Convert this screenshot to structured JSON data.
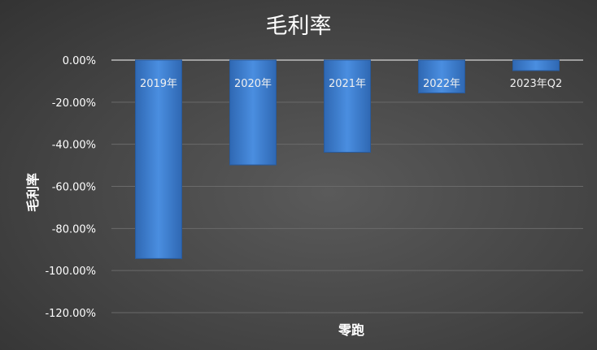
{
  "chart_data": {
    "type": "bar",
    "title": "毛利率",
    "xlabel": "零跑",
    "ylabel": "毛利率",
    "categories": [
      "2019年",
      "2020年",
      "2021年",
      "2022年",
      "2023年Q2"
    ],
    "values": [
      -94.3,
      -49.8,
      -43.8,
      -15.6,
      -5.0
    ],
    "value_unit": "%",
    "ylim": [
      -120,
      0
    ],
    "yticks": [
      "0.00%",
      "-20.00%",
      "-40.00%",
      "-60.00%",
      "-80.00%",
      "-100.00%",
      "-120.00%"
    ],
    "grid": true,
    "legend": "none",
    "colors": {
      "bar": "#3f7fd0",
      "background": "#454545",
      "text": "#ffffff",
      "grid": "#6a6a6a"
    }
  }
}
